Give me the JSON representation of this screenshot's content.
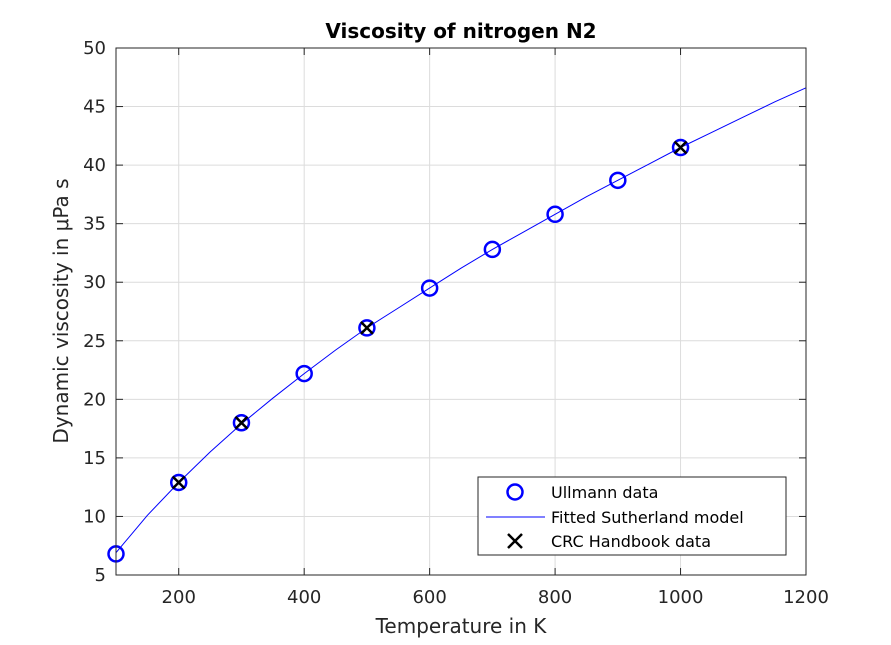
{
  "chart_data": {
    "type": "scatter",
    "title": "Viscosity of nitrogen N2",
    "xlabel": "Temperature in K",
    "ylabel": "Dynamic viscosity in μPa s",
    "xlim": [
      100,
      1200
    ],
    "ylim": [
      5,
      50
    ],
    "xticks": [
      200,
      400,
      600,
      800,
      1000,
      1200
    ],
    "yticks": [
      5,
      10,
      15,
      20,
      25,
      30,
      35,
      40,
      45,
      50
    ],
    "grid": true,
    "legend_position": "bottom-right",
    "series": [
      {
        "name": "Ullmann data",
        "kind": "marker-circle",
        "color": "#0000ff",
        "x": [
          100,
          200,
          300,
          400,
          500,
          600,
          700,
          800,
          900,
          1000
        ],
        "y": [
          6.8,
          12.9,
          18.0,
          22.2,
          26.1,
          29.5,
          32.8,
          35.8,
          38.7,
          41.5
        ]
      },
      {
        "name": "Fitted Sutherland model",
        "kind": "line",
        "color": "#0000ff",
        "x": [
          100,
          150,
          200,
          250,
          300,
          350,
          400,
          450,
          500,
          550,
          600,
          650,
          700,
          750,
          800,
          850,
          900,
          950,
          1000,
          1050,
          1100,
          1150,
          1200
        ],
        "y": [
          6.9,
          10.1,
          12.9,
          15.5,
          17.9,
          20.1,
          22.2,
          24.2,
          26.1,
          27.8,
          29.5,
          31.2,
          32.8,
          34.3,
          35.8,
          37.3,
          38.7,
          40.1,
          41.5,
          42.8,
          44.1,
          45.4,
          46.6
        ]
      },
      {
        "name": "CRC Handbook data",
        "kind": "marker-x",
        "color": "#000000",
        "x": [
          200,
          300,
          500,
          1000
        ],
        "y": [
          12.9,
          18.0,
          26.1,
          41.5
        ]
      }
    ]
  }
}
